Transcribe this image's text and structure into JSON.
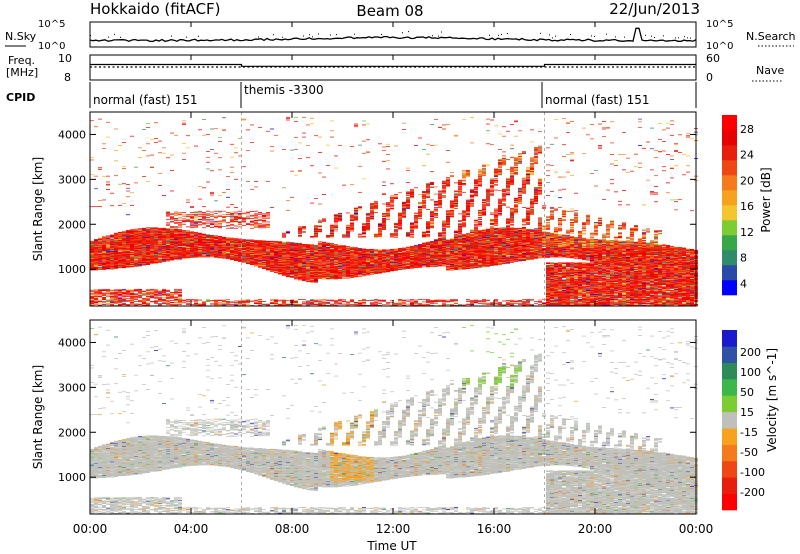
{
  "header": {
    "station": "Hokkaido (fitACF)",
    "beam": "Beam 08",
    "date": "22/Jun/2013"
  },
  "noise_panel": {
    "left_label": "N.Sky",
    "right_label": "N.Search",
    "y_ticks": [
      "10^5",
      "10^0"
    ]
  },
  "freq_panel": {
    "left_label_1": "Freq.",
    "left_label_2": "[MHz]",
    "left_ticks": [
      "10",
      "8"
    ],
    "right_label": "Nave",
    "right_ticks": [
      "60",
      "0"
    ]
  },
  "cpid_panel": {
    "label": "CPID",
    "modes": [
      {
        "name": "normal (fast) 151",
        "start_hour": 0,
        "end_hour": 6
      },
      {
        "name": "themis -3300",
        "start_hour": 6,
        "end_hour": 18
      },
      {
        "name": "normal (fast) 151",
        "start_hour": 18,
        "end_hour": 24
      }
    ]
  },
  "x_axis": {
    "label": "Time UT",
    "ticks": [
      "00:00",
      "04:00",
      "08:00",
      "12:00",
      "16:00",
      "20:00",
      "00:00"
    ]
  },
  "colors": {
    "background": "#ffffff",
    "axes": "#000000",
    "ground_scatter": "#c0c0bb"
  },
  "chart_data": [
    {
      "type": "heatmap",
      "title": "",
      "xlabel": "",
      "ylabel": "Slant Range [km]",
      "xlim": [
        0,
        24
      ],
      "ylim": [
        180,
        4500
      ],
      "y_ticks": [
        "1000",
        "2000",
        "3000",
        "4000"
      ],
      "colorbar": {
        "label": "Power [dB]",
        "tick_labels": [
          "4",
          "8",
          "12",
          "16",
          "20",
          "24",
          "28"
        ],
        "colors": [
          "#0000ff",
          "#2a4aa8",
          "#2e8b6b",
          "#36a848",
          "#7ccd33",
          "#f3c62d",
          "#f7a21f",
          "#f47a1b",
          "#ee4714",
          "#e81e0c",
          "#e60000",
          "#ff0000"
        ]
      },
      "dominant_structures": [
        {
          "feature": "main echo band",
          "time_start": 0,
          "time_end": 24,
          "range_from": 900,
          "range_to": 1700,
          "power_db": 28
        },
        {
          "feature": "rising streaks",
          "time_start": 8,
          "time_end": 17.5,
          "range_from": 1700,
          "range_to": 3900,
          "power_db": 24
        },
        {
          "feature": "near-range echoes",
          "time_start": 18,
          "time_end": 24,
          "range_from": 200,
          "range_to": 1200,
          "power_db": 28
        }
      ]
    },
    {
      "type": "heatmap",
      "title": "",
      "xlabel": "Time UT",
      "ylabel": "Slant Range [km]",
      "xlim": [
        0,
        24
      ],
      "ylim": [
        180,
        4500
      ],
      "y_ticks": [
        "1000",
        "2000",
        "3000",
        "4000"
      ],
      "colorbar": {
        "label": "Velocity [m s^-1]",
        "tick_labels": [
          "200",
          "100",
          "50",
          "15",
          "-15",
          "-50",
          "-100",
          "-200"
        ],
        "colors": [
          "#1a1acc",
          "#2f52a6",
          "#2e8b57",
          "#3cb84a",
          "#7ccd33",
          "#c0c0bb",
          "#f7a21f",
          "#f47a1b",
          "#ee4714",
          "#e81e0c",
          "#ff0000"
        ]
      },
      "dominant_structures": [
        {
          "feature": "ground scatter band",
          "time_start": 0,
          "time_end": 24,
          "range_from": 900,
          "range_to": 1800,
          "velocity": "grey"
        },
        {
          "feature": "ground scatter streaks",
          "time_start": 6,
          "time_end": 17.5,
          "range_from": 1800,
          "range_to": 3800,
          "velocity": "grey"
        },
        {
          "feature": "negative velocity patches",
          "time_start": 9.5,
          "time_end": 11,
          "range_from": 1000,
          "range_to": 2500,
          "velocity": -40
        }
      ]
    }
  ]
}
